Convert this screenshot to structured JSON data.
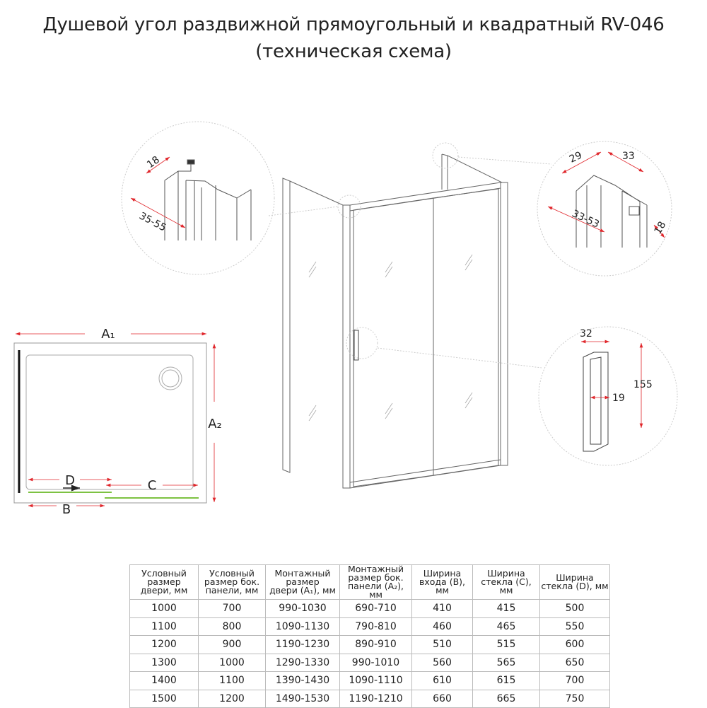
{
  "title": {
    "line1": "Душевой угол раздвижной прямоугольный и квадратный RV-046",
    "line2": "(техническая схема)"
  },
  "plan": {
    "a1": "A₁",
    "a2": "A₂",
    "b": "B",
    "c": "C",
    "d": "D"
  },
  "detail_left": {
    "dim1": "18",
    "dim2": "35-55"
  },
  "detail_right": {
    "dim1": "29",
    "dim2": "33",
    "dim3": "33-53",
    "dim4": "18"
  },
  "detail_handle": {
    "width": "32",
    "height": "155",
    "gap": "19"
  },
  "colors": {
    "dimension": "#e0262b",
    "glass": "#7dc242",
    "line": "#555555"
  },
  "table": {
    "headers": [
      [
        "Условный",
        "размер",
        "двери, мм"
      ],
      [
        "Условный",
        "размер бок.",
        "панели, мм"
      ],
      [
        "Монтажный",
        "размер",
        "двери (A₁), мм"
      ],
      [
        "Монтажный",
        "размер бок.",
        "панели (A₂), мм"
      ],
      [
        "Ширина",
        "входа (B), мм"
      ],
      [
        "Ширина",
        "стекла (C), мм"
      ],
      [
        "Ширина",
        "стекла (D), мм"
      ]
    ],
    "rows": [
      [
        "1000",
        "700",
        "990-1030",
        "690-710",
        "410",
        "415",
        "500"
      ],
      [
        "1100",
        "800",
        "1090-1130",
        "790-810",
        "460",
        "465",
        "550"
      ],
      [
        "1200",
        "900",
        "1190-1230",
        "890-910",
        "510",
        "515",
        "600"
      ],
      [
        "1300",
        "1000",
        "1290-1330",
        "990-1010",
        "560",
        "565",
        "650"
      ],
      [
        "1400",
        "1100",
        "1390-1430",
        "1090-1110",
        "610",
        "615",
        "700"
      ],
      [
        "1500",
        "1200",
        "1490-1530",
        "1190-1210",
        "660",
        "665",
        "750"
      ]
    ]
  }
}
